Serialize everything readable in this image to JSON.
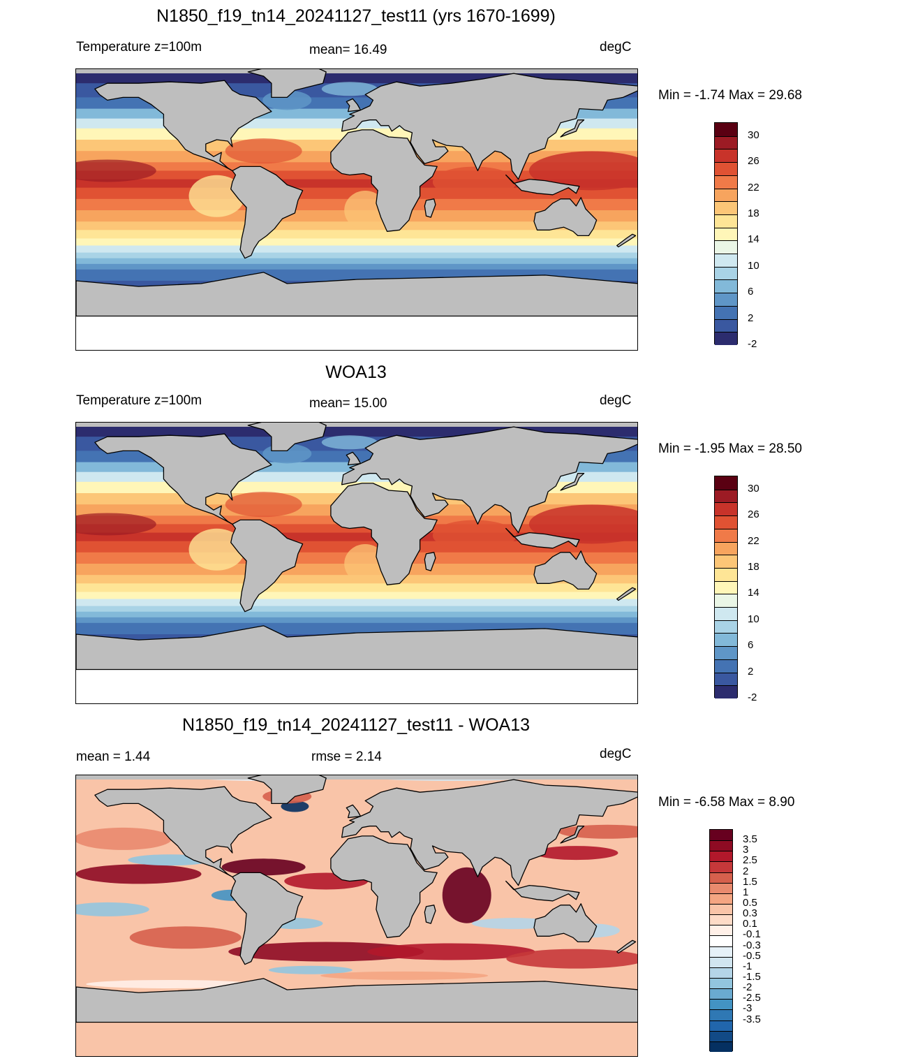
{
  "panels": [
    {
      "title": "N1850_f19_tn14_20241127_test11 (yrs 1670-1699)",
      "left_label": "Temperature z=100m",
      "center_label": "mean=  16.49",
      "right_label": "degC",
      "minmax": "Min =  -1.74 Max =  29.68",
      "kind": "temp",
      "colorbar": {
        "colors": [
          "#5a0012",
          "#9c1b24",
          "#c8332a",
          "#e05233",
          "#f07a48",
          "#f7a45e",
          "#fcc677",
          "#fee596",
          "#fff6b8",
          "#eaf6e6",
          "#cfe8f0",
          "#a9d3e6",
          "#82b9d9",
          "#5f96c7",
          "#4473b3",
          "#3a58a0",
          "#2c2c6e"
        ],
        "labels": [
          "30",
          "26",
          "22",
          "18",
          "14",
          "10",
          "6",
          "2",
          "-2"
        ]
      }
    },
    {
      "title": "WOA13",
      "left_label": "Temperature z=100m",
      "center_label": "mean=  15.00",
      "right_label": "degC",
      "minmax": "Min =  -1.95 Max =  28.50",
      "kind": "temp",
      "colorbar": {
        "colors": [
          "#5a0012",
          "#9c1b24",
          "#c8332a",
          "#e05233",
          "#f07a48",
          "#f7a45e",
          "#fcc677",
          "#fee596",
          "#fff6b8",
          "#eaf6e6",
          "#cfe8f0",
          "#a9d3e6",
          "#82b9d9",
          "#5f96c7",
          "#4473b3",
          "#3a58a0",
          "#2c2c6e"
        ],
        "labels": [
          "30",
          "26",
          "22",
          "18",
          "14",
          "10",
          "6",
          "2",
          "-2"
        ]
      }
    },
    {
      "title": "N1850_f19_tn14_20241127_test11 - WOA13",
      "left_label": "mean =   1.44",
      "center_label": "rmse =   2.14",
      "right_label": "degC",
      "minmax": "Min =  -6.58 Max =   8.90",
      "kind": "diff",
      "colorbar": {
        "colors": [
          "#67001f",
          "#8e0b23",
          "#b2182b",
          "#c6383a",
          "#d6604d",
          "#e98a6e",
          "#f4a582",
          "#f9c4a8",
          "#fddbc7",
          "#fff0e8",
          "#ffffff",
          "#e6f1f8",
          "#d1e5f0",
          "#b4d5e8",
          "#92c5de",
          "#6aaad0",
          "#4393c3",
          "#2f78b4",
          "#2166ac",
          "#124a86",
          "#053061"
        ],
        "labels": [
          "3.5",
          "3",
          "2.5",
          "2",
          "1.5",
          "1",
          "0.5",
          "0.3",
          "0.1",
          "-0.1",
          "-0.3",
          "-0.5",
          "-1",
          "-1.5",
          "-2",
          "-2.5",
          "-3",
          "-3.5"
        ]
      }
    }
  ],
  "land_color": "#bebebe"
}
